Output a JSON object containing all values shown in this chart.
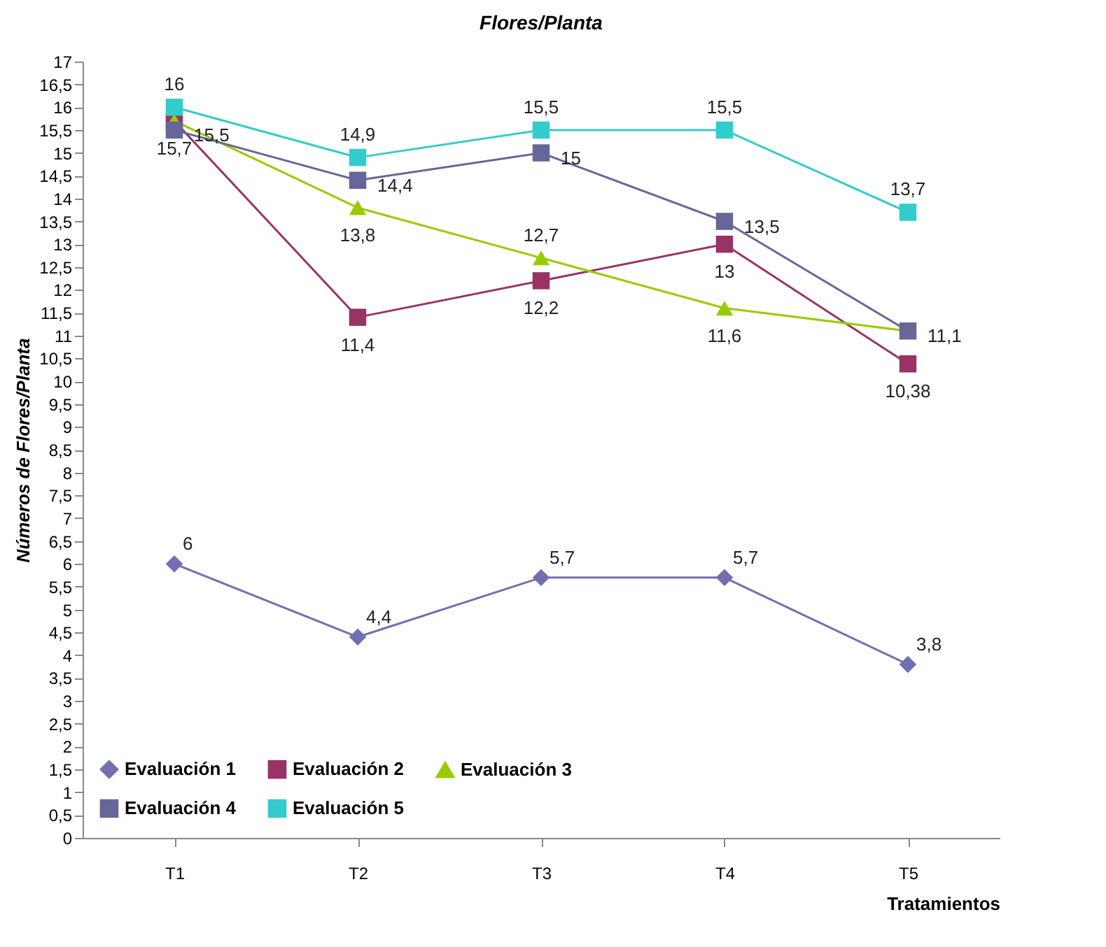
{
  "chart_data": {
    "type": "line",
    "title": "Flores/Planta",
    "xlabel": "Tratamientos",
    "ylabel": "Números de Flores/Planta",
    "categories": [
      "T1",
      "T2",
      "T3",
      "T4",
      "T5"
    ],
    "series": [
      {
        "name": "Evaluación 1",
        "color": "#7070b0",
        "marker": "diamond",
        "values": [
          6,
          4.4,
          5.7,
          5.7,
          3.8
        ],
        "value_labels": [
          "6",
          "4,4",
          "5,7",
          "5,7",
          "3,8"
        ]
      },
      {
        "name": "Evaluación 2",
        "color": "#993366",
        "marker": "square",
        "values": [
          15.7,
          11.4,
          12.2,
          13,
          10.38
        ],
        "value_labels": [
          "15,7",
          "11,4",
          "12,2",
          "13",
          "10,38"
        ]
      },
      {
        "name": "Evaluación 3",
        "color": "#99cc00",
        "marker": "triangle",
        "values": [
          15.7,
          13.8,
          12.7,
          11.6,
          11.1
        ],
        "value_labels": [
          null,
          "13,8",
          "12,7",
          "11,6",
          null
        ]
      },
      {
        "name": "Evaluación 4",
        "color": "#666699",
        "marker": "square",
        "values": [
          15.5,
          14.4,
          15,
          13.5,
          11.1
        ],
        "value_labels": [
          "15,5",
          "14,4",
          "15",
          "13,5",
          "11,1"
        ]
      },
      {
        "name": "Evaluación 5",
        "color": "#33cccc",
        "marker": "square",
        "values": [
          16,
          14.9,
          15.5,
          15.5,
          13.7
        ],
        "value_labels": [
          "16",
          "14,9",
          "15,5",
          "15,5",
          "13,7"
        ]
      }
    ],
    "ylim": [
      0,
      17
    ],
    "yticks": [
      0,
      {
        "value": 0.5,
        "label": "0,5"
      },
      1,
      {
        "value": 1.5,
        "label": "1,5"
      },
      2,
      {
        "value": 2.5,
        "label": "2,5"
      },
      3,
      {
        "value": 3.5,
        "label": "3,5"
      },
      4,
      {
        "value": 4.5,
        "label": "4,5"
      },
      5,
      {
        "value": 5.5,
        "label": "5,5"
      },
      6,
      {
        "value": 6.5,
        "label": "6,5"
      },
      7,
      {
        "value": 7.5,
        "label": "7,5"
      },
      8,
      {
        "value": 8.5,
        "label": "8,5"
      },
      9,
      {
        "value": 9.5,
        "label": "9,5"
      },
      10,
      {
        "value": 10.5,
        "label": "10,5"
      },
      11,
      {
        "value": 11.5,
        "label": "11,5"
      },
      12,
      {
        "value": 12.5,
        "label": "12,5"
      },
      13,
      {
        "value": 13.5,
        "label": "13,5"
      },
      14,
      {
        "value": 14.5,
        "label": "14,5"
      },
      15,
      {
        "value": 15.5,
        "label": "15,5"
      },
      16,
      {
        "value": 16.5,
        "label": "16,5"
      },
      17
    ],
    "grid": false,
    "legend": "bottom left"
  }
}
